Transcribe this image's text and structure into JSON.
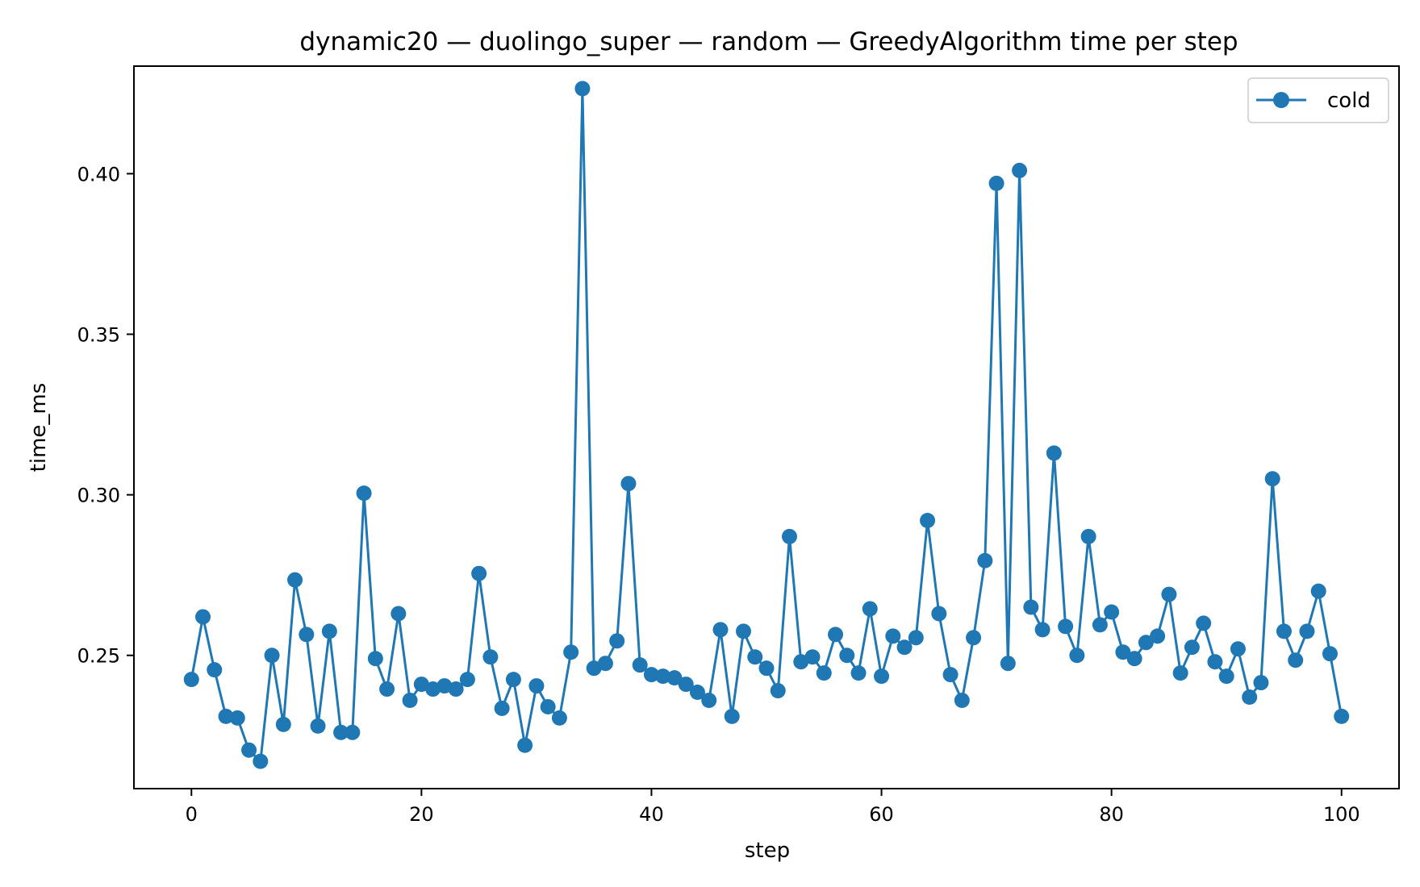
{
  "chart_data": {
    "type": "line",
    "title": "dynamic20 — duolingo_super — random — GreedyAlgorithm time per step",
    "xlabel": "step",
    "ylabel": "time_ms",
    "xlim": [
      -5,
      105
    ],
    "ylim": [
      0.2085,
      0.4335
    ],
    "xticks": [
      0,
      20,
      40,
      60,
      80,
      100
    ],
    "xtick_labels": [
      "0",
      "20",
      "40",
      "60",
      "80",
      "100"
    ],
    "yticks": [
      0.25,
      0.3,
      0.35,
      0.4
    ],
    "ytick_labels": [
      "0.25",
      "0.30",
      "0.35",
      "0.40"
    ],
    "grid": false,
    "legend_position": "top-right",
    "series": [
      {
        "name": "cold",
        "color": "#1f77b4",
        "marker": "circle",
        "x": [
          0,
          1,
          2,
          3,
          4,
          5,
          6,
          7,
          8,
          9,
          10,
          11,
          12,
          13,
          14,
          15,
          16,
          17,
          18,
          19,
          20,
          21,
          22,
          23,
          24,
          25,
          26,
          27,
          28,
          29,
          30,
          31,
          32,
          33,
          34,
          35,
          36,
          37,
          38,
          39,
          40,
          41,
          42,
          43,
          44,
          45,
          46,
          47,
          48,
          49,
          50,
          51,
          52,
          53,
          54,
          55,
          56,
          57,
          58,
          59,
          60,
          61,
          62,
          63,
          64,
          65,
          66,
          67,
          68,
          69,
          70,
          71,
          72,
          73,
          74,
          75,
          76,
          77,
          78,
          79,
          80,
          81,
          82,
          83,
          84,
          85,
          86,
          87,
          88,
          89,
          90,
          91,
          92,
          93,
          94,
          95,
          96,
          97,
          98,
          99,
          100
        ],
        "values": [
          0.2425,
          0.262,
          0.2455,
          0.231,
          0.2305,
          0.2205,
          0.217,
          0.25,
          0.2285,
          0.2735,
          0.2565,
          0.228,
          0.2575,
          0.226,
          0.226,
          0.3005,
          0.249,
          0.2395,
          0.263,
          0.236,
          0.241,
          0.2395,
          0.2405,
          0.2395,
          0.2425,
          0.2755,
          0.2495,
          0.2335,
          0.2425,
          0.222,
          0.2405,
          0.234,
          0.2305,
          0.251,
          0.4265,
          0.246,
          0.2475,
          0.2545,
          0.3035,
          0.247,
          0.244,
          0.2435,
          0.243,
          0.241,
          0.2385,
          0.236,
          0.258,
          0.231,
          0.2575,
          0.2495,
          0.246,
          0.239,
          0.287,
          0.248,
          0.2495,
          0.2445,
          0.2565,
          0.25,
          0.2445,
          0.2645,
          0.2435,
          0.256,
          0.2525,
          0.2555,
          0.292,
          0.263,
          0.244,
          0.236,
          0.2555,
          0.2795,
          0.397,
          0.2475,
          0.401,
          0.265,
          0.258,
          0.313,
          0.259,
          0.25,
          0.287,
          0.2595,
          0.2635,
          0.251,
          0.249,
          0.254,
          0.256,
          0.269,
          0.2445,
          0.2525,
          0.26,
          0.248,
          0.2435,
          0.252,
          0.237,
          0.2415,
          0.305,
          0.2575,
          0.2485,
          0.2575,
          0.27,
          0.2505,
          0.231
        ]
      }
    ]
  }
}
